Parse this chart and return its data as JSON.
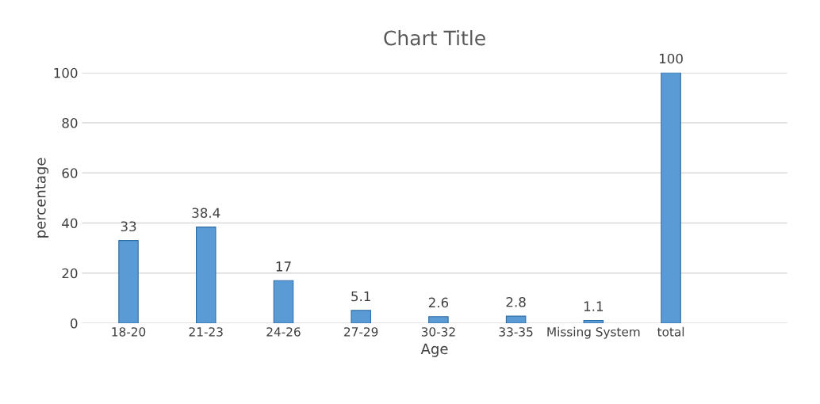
{
  "chart_data": {
    "type": "bar",
    "title": "Chart Title",
    "xlabel": "Age",
    "ylabel": "percentage",
    "categories": [
      "18-20",
      "21-23",
      "24-26",
      "27-29",
      "30-32",
      "33-35",
      "Missing System",
      "total",
      null
    ],
    "values": [
      33,
      38.4,
      17,
      5.1,
      2.6,
      2.8,
      1.1,
      100,
      null
    ],
    "color": "#5b9bd5",
    "ylim": [
      0,
      100
    ],
    "yticks": [
      0,
      20,
      40,
      60,
      80,
      100
    ],
    "grid": "y",
    "data_labels": true,
    "legend": false
  }
}
